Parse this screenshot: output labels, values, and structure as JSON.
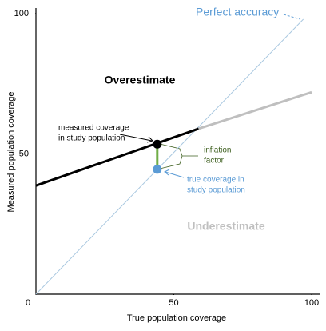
{
  "chart_data": {
    "type": "line",
    "x_label": "True population coverage",
    "y_label": "Measured population coverage",
    "xlim": [
      0,
      100
    ],
    "ylim": [
      0,
      100
    ],
    "xticks": [
      0,
      50,
      100
    ],
    "yticks": [
      50,
      100
    ],
    "series": [
      {
        "color": "#a9c8e0",
        "x": [
          0,
          97
        ],
        "values": [
          0,
          98
        ]
      },
      {
        "color": "#000000",
        "x": [
          0,
          59
        ],
        "values": [
          38.7,
          59
        ]
      },
      {
        "color": "#bfbfbf",
        "x": [
          59,
          100
        ],
        "values": [
          59,
          72
        ]
      }
    ],
    "points": [
      {
        "color": "#000000",
        "x": 44,
        "value": 53.5
      },
      {
        "color": "#5b9bd5",
        "x": 44,
        "value": 44.5
      }
    ],
    "gap_color": "#70ad47",
    "annotations": [
      {
        "lines": [
          "Perfect accuracy"
        ],
        "color": "#5b9bd5"
      },
      {
        "lines": [
          "Overestimate"
        ],
        "color": "#000000"
      },
      {
        "lines": [
          "Underestimate"
        ],
        "color": "#bfbfbf"
      },
      {
        "lines": [
          "measured coverage",
          "in study population"
        ],
        "color": "#000000"
      },
      {
        "lines": [
          "inflation",
          "factor"
        ],
        "color": "#3f6020"
      },
      {
        "lines": [
          "true coverage in",
          "study population"
        ],
        "color": "#5b9bd5"
      }
    ]
  }
}
